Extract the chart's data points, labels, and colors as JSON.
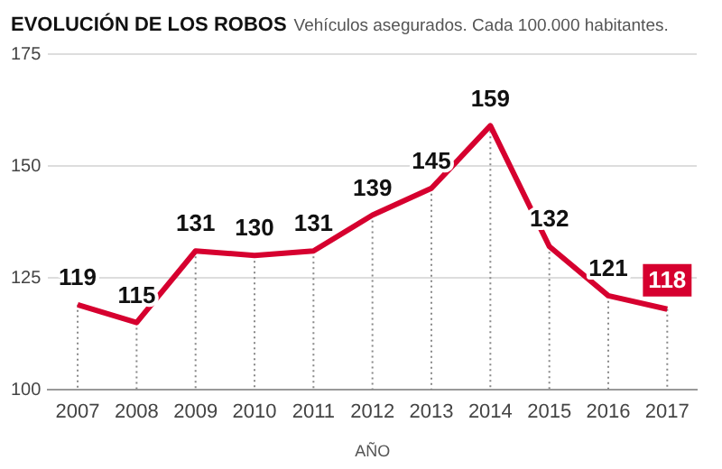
{
  "chart_data": {
    "type": "line",
    "title": "EVOLUCIÓN DE LOS ROBOS",
    "subtitle": "Vehículos asegurados. Cada 100.000 habitantes.",
    "xlabel": "AÑO",
    "categories": [
      "2007",
      "2008",
      "2009",
      "2010",
      "2011",
      "2012",
      "2013",
      "2014",
      "2015",
      "2016",
      "2017"
    ],
    "series": [
      {
        "color": "#d6002f",
        "values": [
          119,
          115,
          131,
          130,
          131,
          139,
          145,
          159,
          132,
          121,
          118
        ]
      }
    ],
    "ylim": [
      100,
      175
    ],
    "yticks": [
      100,
      125,
      150,
      175
    ],
    "grid": "y",
    "legend": false,
    "marker": "none",
    "line_style": "solid",
    "data_labels": true
  }
}
